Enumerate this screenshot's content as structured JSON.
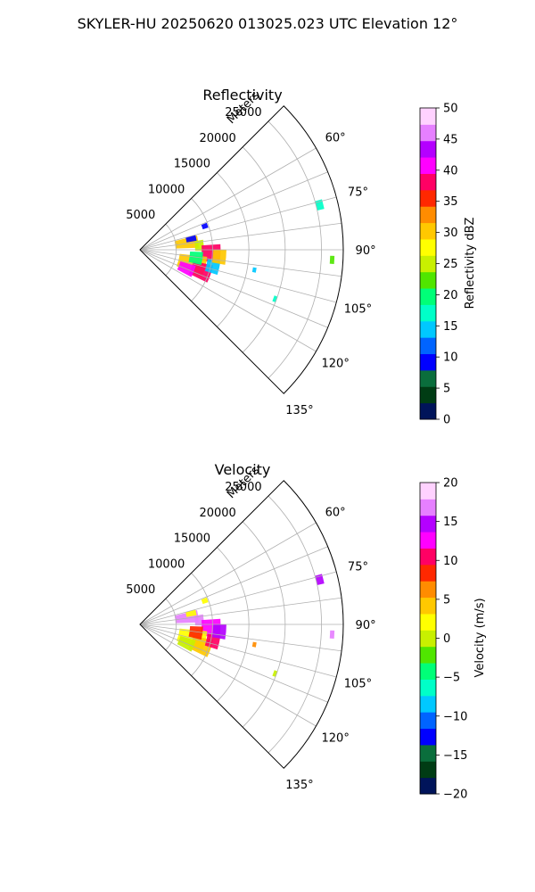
{
  "figure": {
    "title": "SKYLER-HU  20250620  013025.023 UTC Elevation 12°",
    "background": "#ffffff"
  },
  "chart_data": [
    {
      "type": "heatmap",
      "projection": "polar-sector",
      "title": "Reflectivity",
      "radial_label": "Meters",
      "radial_ticks": [
        "5000",
        "10000",
        "15000",
        "20000",
        "25000"
      ],
      "angle_ticks": [
        "60°",
        "75°",
        "90°",
        "105°",
        "120°",
        "135°"
      ],
      "azimuth_range_deg": [
        45,
        135
      ],
      "range_max_m": 28000,
      "grid": true,
      "colorbar": {
        "label": "Reflectivity dBZ",
        "min": 0,
        "max": 50,
        "ticks": [
          "0",
          "5",
          "10",
          "15",
          "20",
          "25",
          "30",
          "35",
          "40",
          "45",
          "50"
        ],
        "colors": [
          "#00145a",
          "#003c14",
          "#0a6e3c",
          "#0000ff",
          "#0064ff",
          "#00c8ff",
          "#00ffc8",
          "#00ff78",
          "#50e600",
          "#c8f000",
          "#ffff00",
          "#ffc800",
          "#ff8c00",
          "#ff2800",
          "#ff0064",
          "#ff00ff",
          "#b400ff",
          "#e680ff",
          "#ffd2ff"
        ]
      },
      "cells": [
        {
          "az": 82,
          "r": 6500,
          "ra": 6,
          "rr": 1600,
          "v": 30
        },
        {
          "az": 78,
          "r": 7200,
          "ra": 3,
          "rr": 700,
          "v": 8
        },
        {
          "az": 86,
          "r": 8200,
          "ra": 5,
          "rr": 600,
          "v": 25
        },
        {
          "az": 93,
          "r": 9800,
          "ra": 7,
          "rr": 1300,
          "v": 38
        },
        {
          "az": 105,
          "r": 7400,
          "ra": 9,
          "rr": 1900,
          "v": 30
        },
        {
          "az": 109,
          "r": 8900,
          "ra": 7,
          "rr": 1400,
          "v": 38
        },
        {
          "az": 98,
          "r": 7800,
          "ra": 6,
          "rr": 900,
          "v": 20
        },
        {
          "az": 112,
          "r": 6900,
          "ra": 6,
          "rr": 1100,
          "v": 42
        },
        {
          "az": 103,
          "r": 10300,
          "ra": 5,
          "rr": 900,
          "v": 14
        },
        {
          "az": 95,
          "r": 11000,
          "ra": 5,
          "rr": 900,
          "v": 30
        },
        {
          "az": 76,
          "r": 25500,
          "ra": 1.5,
          "rr": 500,
          "v": 18
        },
        {
          "az": 93,
          "r": 26500,
          "ra": 1.2,
          "rr": 300,
          "v": 22
        },
        {
          "az": 110,
          "r": 19800,
          "ra": 1.2,
          "rr": 250,
          "v": 16
        },
        {
          "az": 100,
          "r": 16000,
          "ra": 1.2,
          "rr": 250,
          "v": 14
        },
        {
          "az": 70,
          "r": 9500,
          "ra": 2,
          "rr": 400,
          "v": 10
        }
      ]
    },
    {
      "type": "heatmap",
      "projection": "polar-sector",
      "title": "Velocity",
      "radial_label": "Meters",
      "radial_ticks": [
        "5000",
        "10000",
        "15000",
        "20000",
        "25000"
      ],
      "angle_ticks": [
        "60°",
        "75°",
        "90°",
        "105°",
        "120°",
        "135°"
      ],
      "azimuth_range_deg": [
        45,
        135
      ],
      "range_max_m": 28000,
      "grid": true,
      "colorbar": {
        "label": "Velocity (m/s)",
        "min": -20,
        "max": 20,
        "ticks": [
          "−20",
          "−15",
          "−10",
          "−5",
          "0",
          "5",
          "10",
          "15",
          "20"
        ],
        "colors": [
          "#00145a",
          "#003c14",
          "#0a6e3c",
          "#0000ff",
          "#0064ff",
          "#00c8ff",
          "#00ffc8",
          "#00ff78",
          "#50e600",
          "#c8f000",
          "#ffff00",
          "#ffc800",
          "#ff8c00",
          "#ff2800",
          "#ff0064",
          "#ff00ff",
          "#b400ff",
          "#e680ff",
          "#ffd2ff"
        ]
      },
      "cells": [
        {
          "az": 82,
          "r": 6500,
          "ra": 6,
          "rr": 1600,
          "v": 16
        },
        {
          "az": 78,
          "r": 7200,
          "ra": 3,
          "rr": 700,
          "v": 3
        },
        {
          "az": 86,
          "r": 8200,
          "ra": 5,
          "rr": 600,
          "v": 17
        },
        {
          "az": 93,
          "r": 9800,
          "ra": 7,
          "rr": 1300,
          "v": 12
        },
        {
          "az": 105,
          "r": 7400,
          "ra": 9,
          "rr": 1900,
          "v": 2
        },
        {
          "az": 109,
          "r": 8900,
          "ra": 7,
          "rr": 1400,
          "v": 5
        },
        {
          "az": 98,
          "r": 7800,
          "ra": 6,
          "rr": 900,
          "v": 9
        },
        {
          "az": 112,
          "r": 6900,
          "ra": 6,
          "rr": 1100,
          "v": 0
        },
        {
          "az": 103,
          "r": 10300,
          "ra": 5,
          "rr": 900,
          "v": 10
        },
        {
          "az": 95,
          "r": 11000,
          "ra": 5,
          "rr": 900,
          "v": 15
        },
        {
          "az": 76,
          "r": 25500,
          "ra": 1.5,
          "rr": 500,
          "v": 14
        },
        {
          "az": 93,
          "r": 26500,
          "ra": 1.2,
          "rr": 300,
          "v": 16
        },
        {
          "az": 110,
          "r": 19800,
          "ra": 1.2,
          "rr": 250,
          "v": 1
        },
        {
          "az": 100,
          "r": 16000,
          "ra": 1.2,
          "rr": 250,
          "v": 6
        },
        {
          "az": 70,
          "r": 9500,
          "ra": 2,
          "rr": 400,
          "v": 2
        }
      ]
    }
  ]
}
